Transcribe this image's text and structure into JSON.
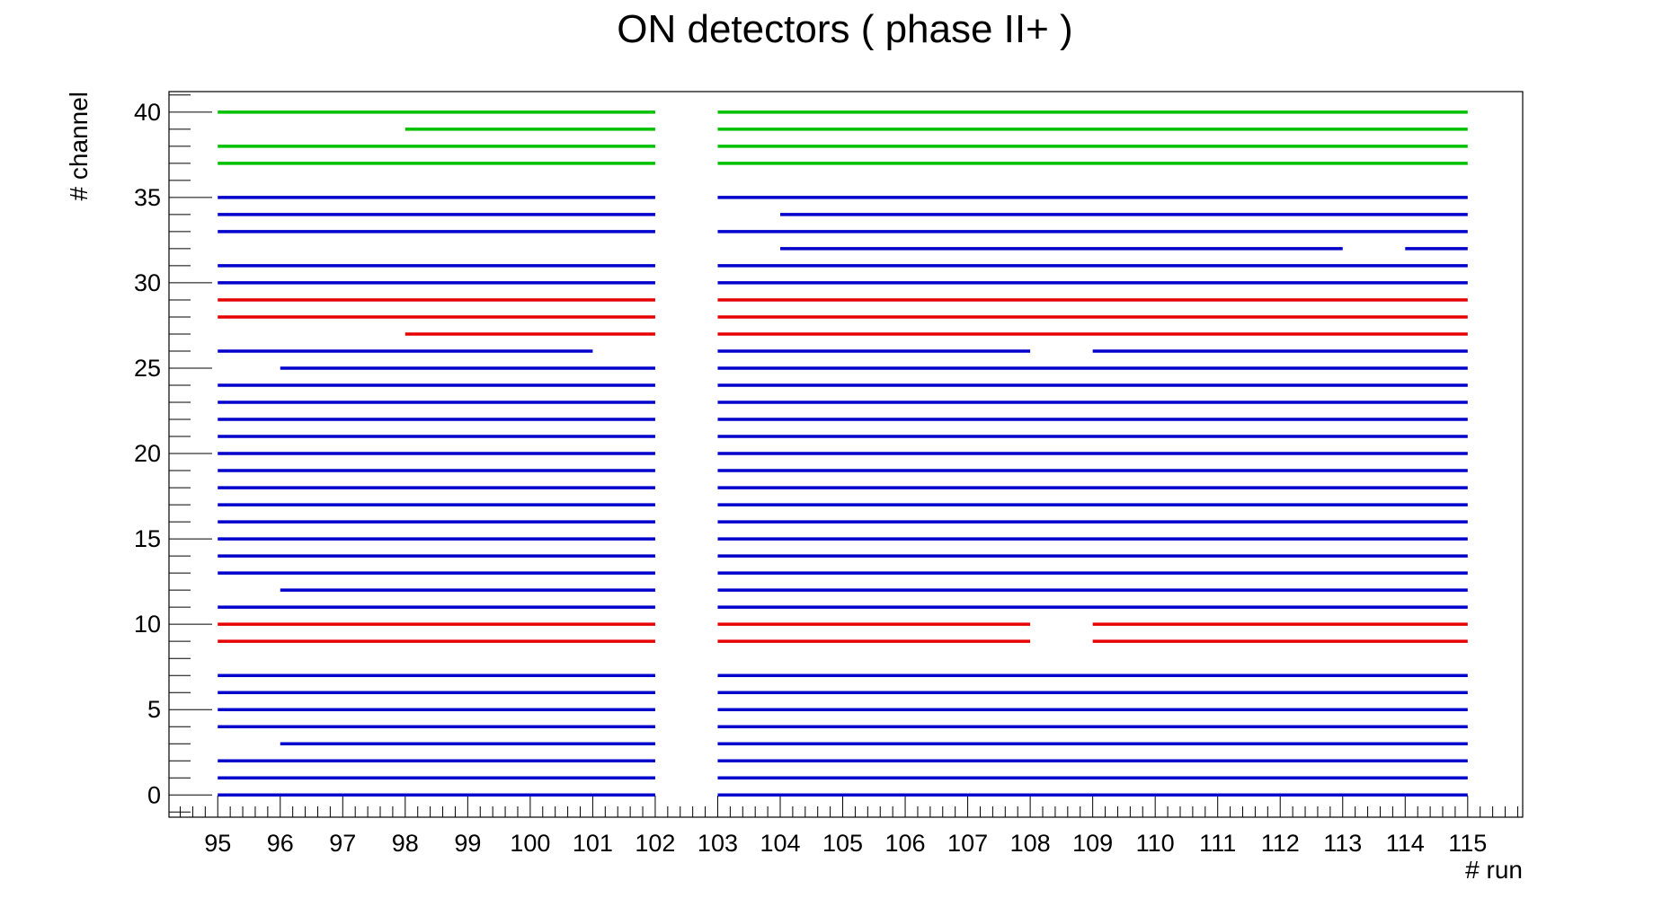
{
  "chart_data": {
    "type": "line",
    "title": "ON detectors ( phase II+ )",
    "xlabel": "# run",
    "ylabel": "# channel",
    "xlim": [
      94.22,
      115.88
    ],
    "ylim": [
      -1.3,
      41.2
    ],
    "x_ticks": [
      95,
      96,
      97,
      98,
      99,
      100,
      101,
      102,
      103,
      104,
      105,
      106,
      107,
      108,
      109,
      110,
      111,
      112,
      113,
      114,
      115
    ],
    "y_ticks": [
      0,
      5,
      10,
      15,
      20,
      25,
      30,
      35,
      40
    ],
    "grid": false,
    "colors": {
      "blue": "#0000cc",
      "red": "#e60000",
      "green": "#00c000"
    },
    "series": [
      {
        "channel": 40,
        "color": "green",
        "segments": [
          [
            95,
            102
          ],
          [
            103,
            115
          ]
        ]
      },
      {
        "channel": 39,
        "color": "green",
        "segments": [
          [
            98,
            102
          ],
          [
            103,
            115
          ]
        ]
      },
      {
        "channel": 38,
        "color": "green",
        "segments": [
          [
            95,
            102
          ],
          [
            103,
            115
          ]
        ]
      },
      {
        "channel": 37,
        "color": "green",
        "segments": [
          [
            95,
            102
          ],
          [
            103,
            115
          ]
        ]
      },
      {
        "channel": 35,
        "color": "blue",
        "segments": [
          [
            95,
            102
          ],
          [
            103,
            115
          ]
        ]
      },
      {
        "channel": 34,
        "color": "blue",
        "segments": [
          [
            95,
            102
          ],
          [
            104,
            115
          ]
        ]
      },
      {
        "channel": 33,
        "color": "blue",
        "segments": [
          [
            95,
            102
          ],
          [
            103,
            115
          ]
        ]
      },
      {
        "channel": 32,
        "color": "blue",
        "segments": [
          [
            104,
            113
          ],
          [
            114,
            115
          ]
        ]
      },
      {
        "channel": 31,
        "color": "blue",
        "segments": [
          [
            95,
            102
          ],
          [
            103,
            115
          ]
        ]
      },
      {
        "channel": 30,
        "color": "blue",
        "segments": [
          [
            95,
            102
          ],
          [
            103,
            115
          ]
        ]
      },
      {
        "channel": 29,
        "color": "red",
        "segments": [
          [
            95,
            102
          ],
          [
            103,
            115
          ]
        ]
      },
      {
        "channel": 28,
        "color": "red",
        "segments": [
          [
            95,
            102
          ],
          [
            103,
            115
          ]
        ]
      },
      {
        "channel": 27,
        "color": "red",
        "segments": [
          [
            98,
            102
          ],
          [
            103,
            115
          ]
        ]
      },
      {
        "channel": 26,
        "color": "blue",
        "segments": [
          [
            95,
            101
          ],
          [
            103,
            108
          ],
          [
            109,
            115
          ]
        ]
      },
      {
        "channel": 25,
        "color": "blue",
        "segments": [
          [
            96,
            102
          ],
          [
            103,
            115
          ]
        ]
      },
      {
        "channel": 24,
        "color": "blue",
        "segments": [
          [
            95,
            102
          ],
          [
            103,
            115
          ]
        ]
      },
      {
        "channel": 23,
        "color": "blue",
        "segments": [
          [
            95,
            102
          ],
          [
            103,
            115
          ]
        ]
      },
      {
        "channel": 22,
        "color": "blue",
        "segments": [
          [
            95,
            102
          ],
          [
            103,
            115
          ]
        ]
      },
      {
        "channel": 21,
        "color": "blue",
        "segments": [
          [
            95,
            102
          ],
          [
            103,
            115
          ]
        ]
      },
      {
        "channel": 20,
        "color": "blue",
        "segments": [
          [
            95,
            102
          ],
          [
            103,
            115
          ]
        ]
      },
      {
        "channel": 19,
        "color": "blue",
        "segments": [
          [
            95,
            102
          ],
          [
            103,
            115
          ]
        ]
      },
      {
        "channel": 18,
        "color": "blue",
        "segments": [
          [
            95,
            102
          ],
          [
            103,
            115
          ]
        ]
      },
      {
        "channel": 17,
        "color": "blue",
        "segments": [
          [
            95,
            102
          ],
          [
            103,
            115
          ]
        ]
      },
      {
        "channel": 16,
        "color": "blue",
        "segments": [
          [
            95,
            102
          ],
          [
            103,
            115
          ]
        ]
      },
      {
        "channel": 15,
        "color": "blue",
        "segments": [
          [
            95,
            102
          ],
          [
            103,
            115
          ]
        ]
      },
      {
        "channel": 14,
        "color": "blue",
        "segments": [
          [
            95,
            102
          ],
          [
            103,
            115
          ]
        ]
      },
      {
        "channel": 13,
        "color": "blue",
        "segments": [
          [
            95,
            102
          ],
          [
            103,
            115
          ]
        ]
      },
      {
        "channel": 12,
        "color": "blue",
        "segments": [
          [
            96,
            102
          ],
          [
            103,
            115
          ]
        ]
      },
      {
        "channel": 11,
        "color": "blue",
        "segments": [
          [
            95,
            102
          ],
          [
            103,
            115
          ]
        ]
      },
      {
        "channel": 10,
        "color": "red",
        "segments": [
          [
            95,
            102
          ],
          [
            103,
            108
          ],
          [
            109,
            115
          ]
        ]
      },
      {
        "channel": 9,
        "color": "red",
        "segments": [
          [
            95,
            102
          ],
          [
            103,
            108
          ],
          [
            109,
            115
          ]
        ]
      },
      {
        "channel": 7,
        "color": "blue",
        "segments": [
          [
            95,
            102
          ],
          [
            103,
            115
          ]
        ]
      },
      {
        "channel": 6,
        "color": "blue",
        "segments": [
          [
            95,
            102
          ],
          [
            103,
            115
          ]
        ]
      },
      {
        "channel": 5,
        "color": "blue",
        "segments": [
          [
            95,
            102
          ],
          [
            103,
            115
          ]
        ]
      },
      {
        "channel": 4,
        "color": "blue",
        "segments": [
          [
            95,
            102
          ],
          [
            103,
            115
          ]
        ]
      },
      {
        "channel": 3,
        "color": "blue",
        "segments": [
          [
            96,
            102
          ],
          [
            103,
            115
          ]
        ]
      },
      {
        "channel": 2,
        "color": "blue",
        "segments": [
          [
            95,
            102
          ],
          [
            103,
            115
          ]
        ]
      },
      {
        "channel": 1,
        "color": "blue",
        "segments": [
          [
            95,
            102
          ],
          [
            103,
            115
          ]
        ]
      },
      {
        "channel": 0,
        "color": "blue",
        "segments": [
          [
            95,
            102
          ],
          [
            103,
            115
          ]
        ]
      }
    ]
  }
}
